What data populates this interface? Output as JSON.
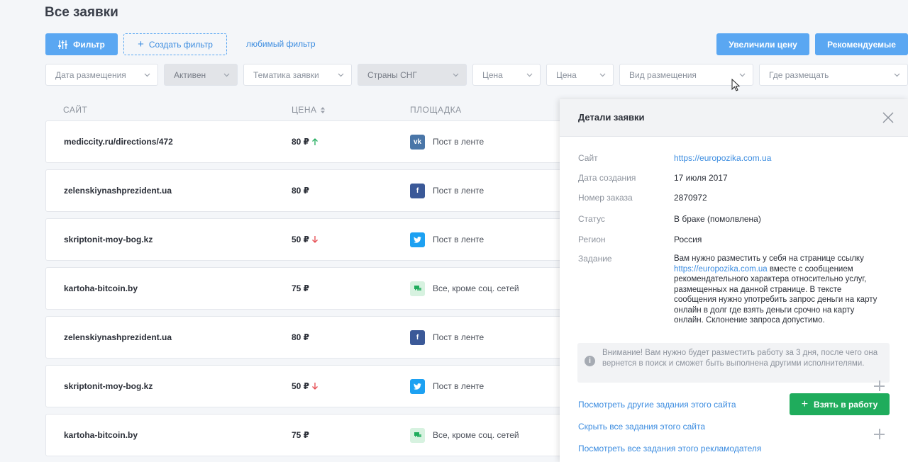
{
  "page": {
    "title": "Все заявки"
  },
  "toolbar": {
    "filter_label": "Фильтр",
    "create_filter_label": "Создать фильтр",
    "favorite_filter_label": "любимый фильтр",
    "raised_price_label": "Увеличили цену",
    "recommended_label": "Рекомендуемые"
  },
  "filters": [
    {
      "label": "Дата размещения"
    },
    {
      "label": "Активен"
    },
    {
      "label": "Тематика заявки"
    },
    {
      "label": "Страны СНГ"
    },
    {
      "label": "Цена"
    },
    {
      "label": "Цена"
    },
    {
      "label": "Вид размещения"
    },
    {
      "label": "Где размещать"
    }
  ],
  "table": {
    "headers": {
      "site": "САЙТ",
      "price": "ЦЕНА",
      "platform": "ПЛОЩАДКА"
    },
    "rows": [
      {
        "site": "mediccity.ru/directions/472",
        "price": "80 ₽",
        "trend": "up",
        "platform_icon": "vk-icon",
        "platform": "Пост в ленте"
      },
      {
        "site": "zelenskiynashprezident.ua",
        "price": "80 ₽",
        "trend": "",
        "platform_icon": "facebook-icon",
        "platform": "Пост в ленте"
      },
      {
        "site": "skriptonit-moy-bog.kz",
        "price": "50 ₽",
        "trend": "down",
        "platform_icon": "twitter-icon",
        "platform": "Пост в ленте"
      },
      {
        "site": "kartoha-bitcoin.by",
        "price": "75 ₽",
        "trend": "",
        "platform_icon": "chat-icon",
        "platform": "Все, кроме соц. сетей"
      },
      {
        "site": "zelenskiynashprezident.ua",
        "price": "80 ₽",
        "trend": "",
        "platform_icon": "facebook-icon",
        "platform": "Пост в ленте"
      },
      {
        "site": "skriptonit-moy-bog.kz",
        "price": "50 ₽",
        "trend": "down",
        "platform_icon": "twitter-icon",
        "platform": "Пост в ленте"
      },
      {
        "site": "kartoha-bitcoin.by",
        "price": "75 ₽",
        "trend": "",
        "platform_icon": "chat-icon",
        "platform": "Все, кроме соц. сетей"
      }
    ]
  },
  "details": {
    "title": "Детали заявки",
    "site_label": "Сайт",
    "site_value": "https://europozika.com.ua",
    "date_label": "Дата создания",
    "date_value": "17 июля 2017",
    "order_label": "Номер заказа",
    "order_value": "2870972",
    "status_label": "Статус",
    "status_value": "В браке (помолвлена)",
    "region_label": "Регион",
    "region_value": "Россия",
    "task_label": "Задание",
    "task_part1": "Вам нужно разместить у себя на странице ссылку",
    "task_link": "https://europozika.com.ua",
    "task_part2": " вместе с сообщением рекомендательного характера относительно услуг, размещенных на данной странице. В тексте сообщения нужно употребить запрос деньги на карту онлайн в долг где взять деньги срочно на карту онлайн. Склонение запроса допустимо.",
    "notice": "Внимание! Вам нужно будет разместить работу за 3 дня, после чего она вернется в поиск и сможет быть выполнена другими исполнителями.",
    "take_label": "Взять в работу",
    "link_other_tasks": "Посмотреть другие задания этого сайта",
    "link_hide_tasks": "Скрыть все задания этого сайта",
    "link_advertiser_tasks": "Посмотреть все задания этого рекламодателя"
  },
  "colors": {
    "accent": "#5aa7f2",
    "success": "#1fac5c",
    "up": "#1fac5c",
    "down": "#e5484d"
  }
}
